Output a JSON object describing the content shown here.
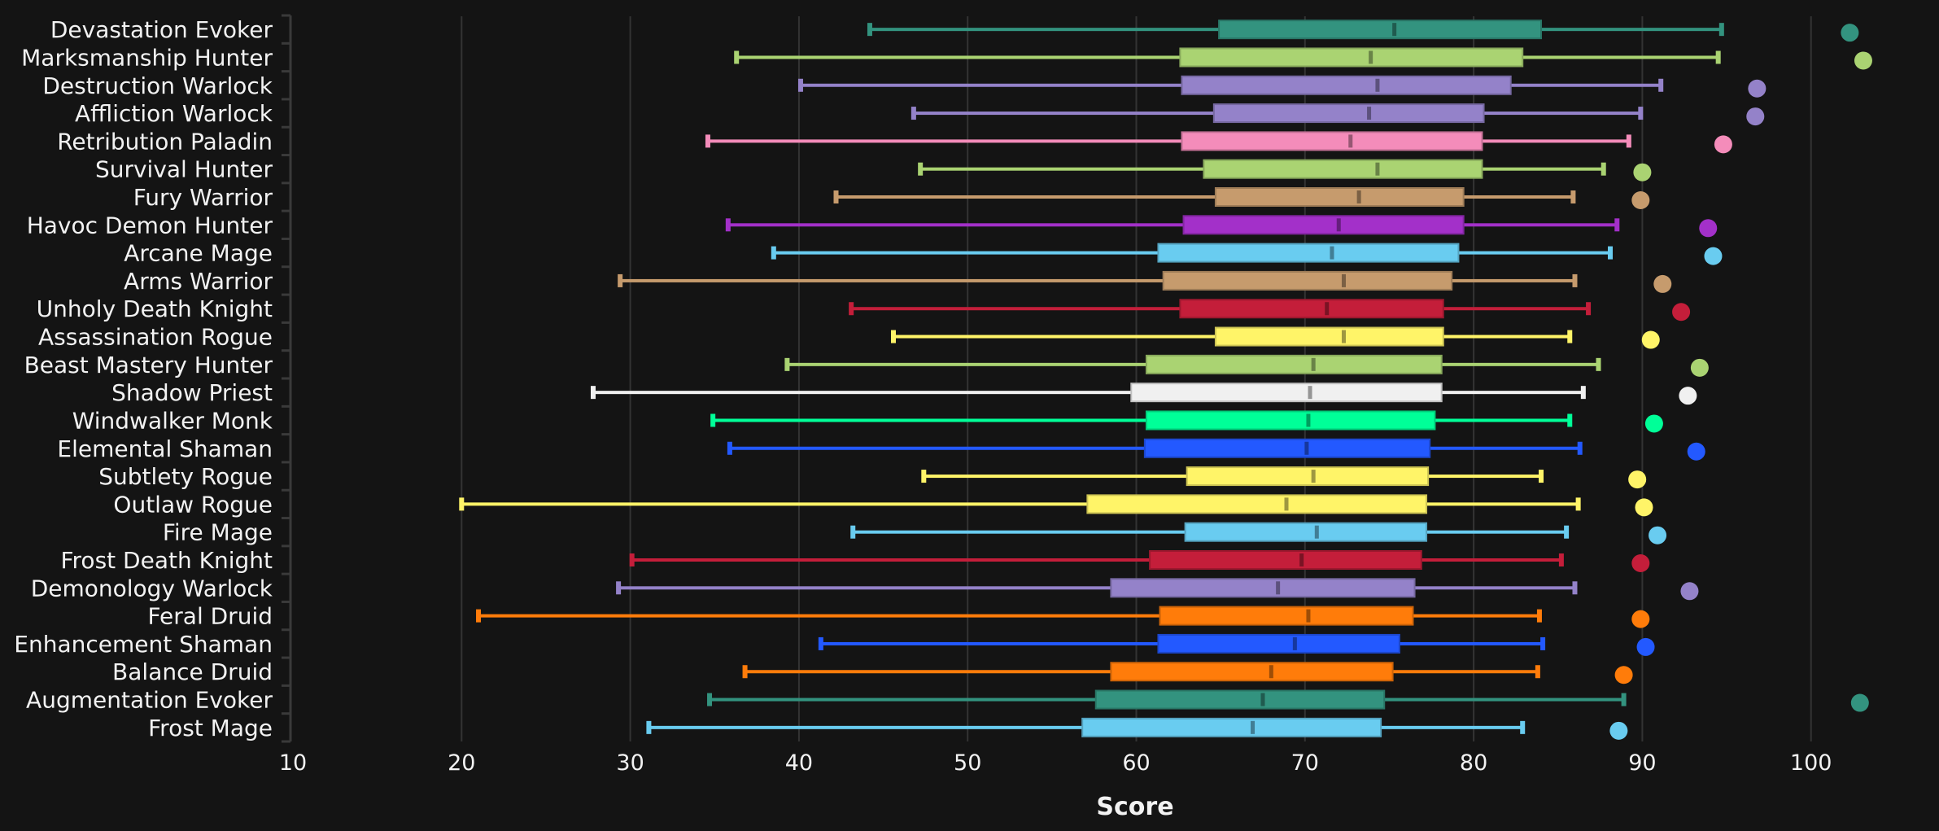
{
  "chart_data": {
    "type": "boxplot",
    "title": "",
    "xlabel": "Score",
    "ylabel": "",
    "xlim": [
      10,
      103
    ],
    "x_ticks": [
      10,
      20,
      30,
      40,
      50,
      60,
      70,
      80,
      90,
      100
    ],
    "x_tick_labels": [
      "10",
      "20",
      "30",
      "40",
      "50",
      "60",
      "70",
      "80",
      "90",
      "100"
    ],
    "grid": "vertical",
    "background": "#141414",
    "legend": "none",
    "series": [
      {
        "name": "Devastation Evoker",
        "color": "#33937F",
        "min": 44.2,
        "q1": 64.9,
        "median": 75.3,
        "q3": 84.0,
        "max": 94.7,
        "max_point": 102.3
      },
      {
        "name": "Marksmanship Hunter",
        "color": "#AAD372",
        "min": 36.3,
        "q1": 62.6,
        "median": 73.9,
        "q3": 82.9,
        "max": 94.5,
        "max_point": 103.1
      },
      {
        "name": "Destruction Warlock",
        "color": "#9482C9",
        "min": 40.1,
        "q1": 62.7,
        "median": 74.3,
        "q3": 82.2,
        "max": 91.1,
        "max_point": 96.8
      },
      {
        "name": "Affliction Warlock",
        "color": "#9482C9",
        "min": 46.8,
        "q1": 64.6,
        "median": 73.8,
        "q3": 80.6,
        "max": 89.9,
        "max_point": 96.7
      },
      {
        "name": "Retribution Paladin",
        "color": "#F48CBA",
        "min": 34.6,
        "q1": 62.7,
        "median": 72.7,
        "q3": 80.5,
        "max": 89.2,
        "max_point": 94.8
      },
      {
        "name": "Survival Hunter",
        "color": "#AAD372",
        "min": 47.2,
        "q1": 64.0,
        "median": 74.3,
        "q3": 80.5,
        "max": 87.7,
        "max_point": 90.0
      },
      {
        "name": "Fury Warrior",
        "color": "#C69B6D",
        "min": 42.2,
        "q1": 64.7,
        "median": 73.2,
        "q3": 79.4,
        "max": 85.9,
        "max_point": 89.9
      },
      {
        "name": "Havoc Demon Hunter",
        "color": "#A330C9",
        "min": 35.8,
        "q1": 62.8,
        "median": 72.0,
        "q3": 79.4,
        "max": 88.5,
        "max_point": 93.9
      },
      {
        "name": "Arcane Mage",
        "color": "#69CCF0",
        "min": 38.5,
        "q1": 61.3,
        "median": 71.6,
        "q3": 79.1,
        "max": 88.1,
        "max_point": 94.2
      },
      {
        "name": "Arms Warrior",
        "color": "#C69B6D",
        "min": 29.4,
        "q1": 61.6,
        "median": 72.3,
        "q3": 78.7,
        "max": 86.0,
        "max_point": 91.2
      },
      {
        "name": "Unholy Death Knight",
        "color": "#C41E3A",
        "min": 43.1,
        "q1": 62.6,
        "median": 71.3,
        "q3": 78.2,
        "max": 86.8,
        "max_point": 92.3
      },
      {
        "name": "Assassination Rogue",
        "color": "#FFF468",
        "min": 45.6,
        "q1": 64.7,
        "median": 72.3,
        "q3": 78.2,
        "max": 85.7,
        "max_point": 90.5
      },
      {
        "name": "Beast Mastery Hunter",
        "color": "#AAD372",
        "min": 39.3,
        "q1": 60.6,
        "median": 70.5,
        "q3": 78.1,
        "max": 87.4,
        "max_point": 93.4
      },
      {
        "name": "Shadow Priest",
        "color": "#F0F0F0",
        "min": 27.8,
        "q1": 59.7,
        "median": 70.3,
        "q3": 78.1,
        "max": 86.5,
        "max_point": 92.7
      },
      {
        "name": "Windwalker Monk",
        "color": "#00FF98",
        "min": 34.9,
        "q1": 60.6,
        "median": 70.2,
        "q3": 77.7,
        "max": 85.7,
        "max_point": 90.7
      },
      {
        "name": "Elemental Shaman",
        "color": "#2359FF",
        "min": 35.9,
        "q1": 60.5,
        "median": 70.1,
        "q3": 77.4,
        "max": 86.3,
        "max_point": 93.2
      },
      {
        "name": "Subtlety Rogue",
        "color": "#FFF468",
        "min": 47.4,
        "q1": 63.0,
        "median": 70.5,
        "q3": 77.3,
        "max": 84.0,
        "max_point": 89.7
      },
      {
        "name": "Outlaw Rogue",
        "color": "#FFF468",
        "min": 20.0,
        "q1": 57.1,
        "median": 68.9,
        "q3": 77.2,
        "max": 86.2,
        "max_point": 90.1
      },
      {
        "name": "Fire Mage",
        "color": "#69CCF0",
        "min": 43.2,
        "q1": 62.9,
        "median": 70.7,
        "q3": 77.2,
        "max": 85.5,
        "max_point": 90.9
      },
      {
        "name": "Frost Death Knight",
        "color": "#C41E3A",
        "min": 30.1,
        "q1": 60.8,
        "median": 69.8,
        "q3": 76.9,
        "max": 85.2,
        "max_point": 89.9
      },
      {
        "name": "Demonology Warlock",
        "color": "#9482C9",
        "min": 29.3,
        "q1": 58.5,
        "median": 68.4,
        "q3": 76.5,
        "max": 86.0,
        "max_point": 92.8
      },
      {
        "name": "Feral Druid",
        "color": "#FF7C0A",
        "min": 21.0,
        "q1": 61.4,
        "median": 70.2,
        "q3": 76.4,
        "max": 83.9,
        "max_point": 89.9
      },
      {
        "name": "Enhancement Shaman",
        "color": "#2359FF",
        "min": 41.3,
        "q1": 61.3,
        "median": 69.4,
        "q3": 75.6,
        "max": 84.1,
        "max_point": 90.2
      },
      {
        "name": "Balance Druid",
        "color": "#FF7C0A",
        "min": 36.8,
        "q1": 58.5,
        "median": 68.0,
        "q3": 75.2,
        "max": 83.8,
        "max_point": 88.9
      },
      {
        "name": "Augmentation Evoker",
        "color": "#33937F",
        "min": 34.7,
        "q1": 57.6,
        "median": 67.5,
        "q3": 74.7,
        "max": 88.9,
        "max_point": 102.9
      },
      {
        "name": "Frost Mage",
        "color": "#69CCF0",
        "min": 31.1,
        "q1": 56.8,
        "median": 66.9,
        "q3": 74.5,
        "max": 82.9,
        "max_point": 88.6
      }
    ]
  }
}
